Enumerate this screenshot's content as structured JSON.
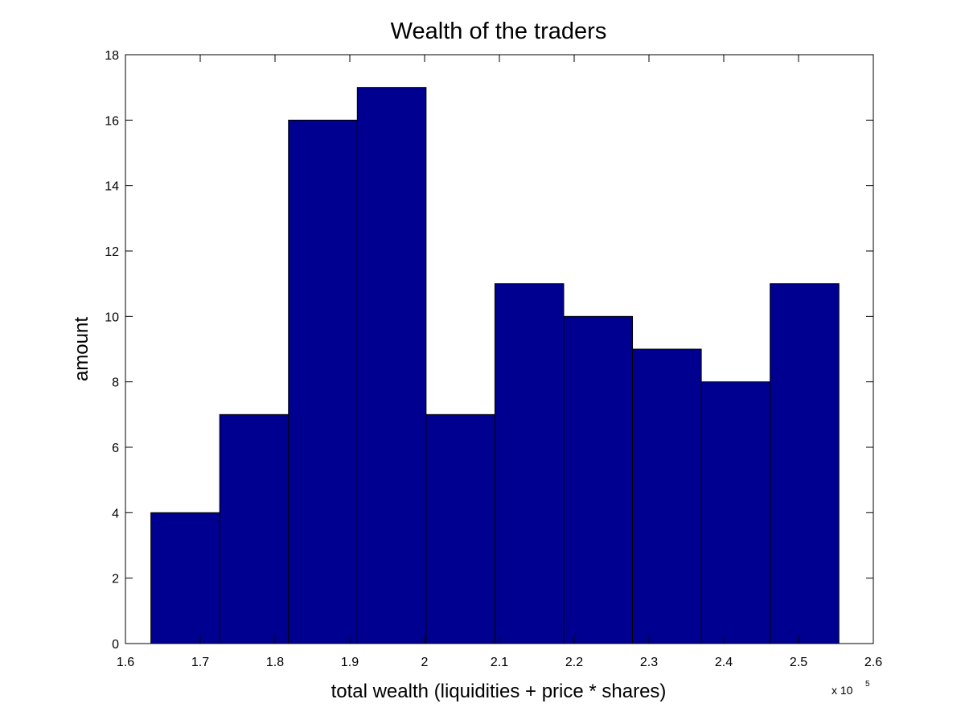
{
  "chart_data": {
    "type": "bar",
    "title": "Wealth of the traders",
    "xlabel": "total wealth (liquidities + price * shares)",
    "ylabel": "amount",
    "x_multiplier_base": "x 10",
    "x_multiplier_exponent": "5",
    "xlim": [
      1.6,
      2.6
    ],
    "ylim": [
      0,
      18
    ],
    "x_ticks": [
      "1.6",
      "1.7",
      "1.8",
      "1.9",
      "2",
      "2.1",
      "2.2",
      "2.3",
      "2.4",
      "2.5",
      "2.6"
    ],
    "y_ticks": [
      "0",
      "2",
      "4",
      "6",
      "8",
      "10",
      "12",
      "14",
      "16",
      "18"
    ],
    "bins": [
      {
        "x0": 1.634,
        "x1": 1.726,
        "value": 4
      },
      {
        "x0": 1.726,
        "x1": 1.818,
        "value": 7
      },
      {
        "x0": 1.818,
        "x1": 1.91,
        "value": 16
      },
      {
        "x0": 1.91,
        "x1": 2.002,
        "value": 17
      },
      {
        "x0": 2.002,
        "x1": 2.094,
        "value": 7
      },
      {
        "x0": 2.094,
        "x1": 2.186,
        "value": 11
      },
      {
        "x0": 2.186,
        "x1": 2.278,
        "value": 10
      },
      {
        "x0": 2.278,
        "x1": 2.37,
        "value": 9
      },
      {
        "x0": 2.37,
        "x1": 2.462,
        "value": 8
      },
      {
        "x0": 2.462,
        "x1": 2.554,
        "value": 11
      }
    ],
    "bar_color": "#000090",
    "grid": false,
    "legend": "none"
  }
}
